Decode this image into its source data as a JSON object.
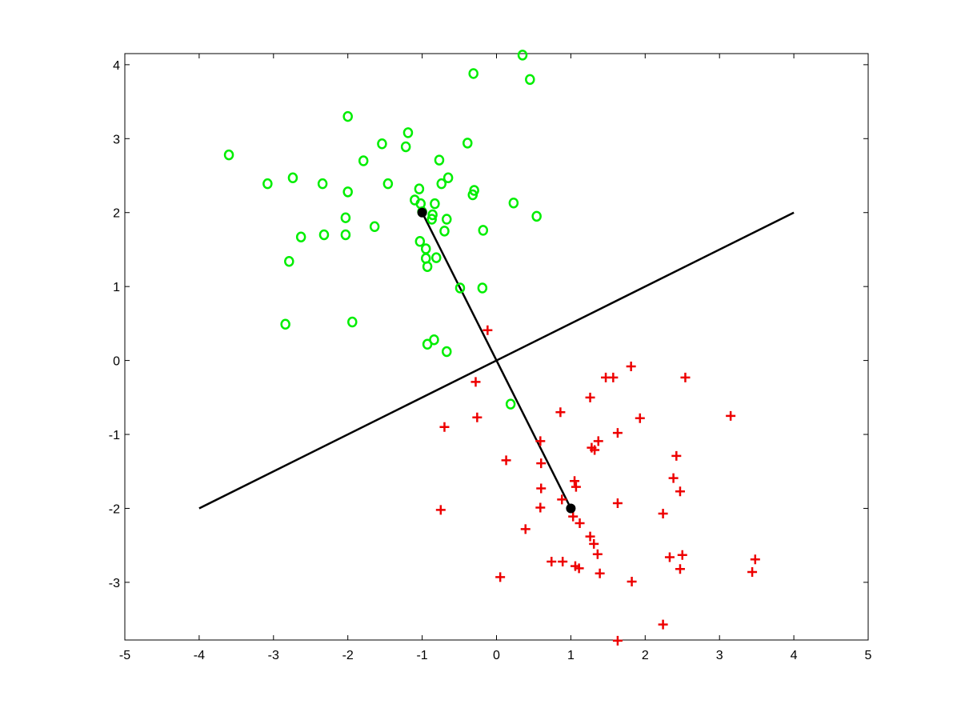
{
  "chart_data": {
    "type": "scatter",
    "title": "",
    "xlabel": "",
    "ylabel": "",
    "xlim": [
      -5,
      5
    ],
    "ylim": [
      -3.78,
      4.15
    ],
    "grid": false,
    "legend": "none",
    "x_ticks": [
      -5,
      -4,
      -3,
      -2,
      -1,
      0,
      1,
      2,
      3,
      4,
      5
    ],
    "y_ticks": [
      -3,
      -2,
      -1,
      0,
      1,
      2,
      3,
      4
    ],
    "series": [
      {
        "marker": "circle",
        "color": "#00ee00",
        "points": [
          [
            0.35,
            4.13
          ],
          [
            -0.31,
            3.88
          ],
          [
            0.45,
            3.8
          ],
          [
            -2.0,
            3.3
          ],
          [
            -1.19,
            3.08
          ],
          [
            -1.54,
            2.93
          ],
          [
            -0.39,
            2.94
          ],
          [
            -1.22,
            2.89
          ],
          [
            -3.6,
            2.78
          ],
          [
            -1.79,
            2.7
          ],
          [
            -0.77,
            2.71
          ],
          [
            -2.74,
            2.47
          ],
          [
            -3.08,
            2.39
          ],
          [
            -2.34,
            2.39
          ],
          [
            -1.46,
            2.39
          ],
          [
            -0.74,
            2.39
          ],
          [
            -0.65,
            2.47
          ],
          [
            -1.04,
            2.32
          ],
          [
            -2.0,
            2.28
          ],
          [
            -0.3,
            2.3
          ],
          [
            -0.32,
            2.24
          ],
          [
            -1.1,
            2.17
          ],
          [
            -1.02,
            2.12
          ],
          [
            -0.83,
            2.12
          ],
          [
            0.23,
            2.13
          ],
          [
            -1.0,
            2.01
          ],
          [
            -0.86,
            1.97
          ],
          [
            0.54,
            1.95
          ],
          [
            -2.03,
            1.93
          ],
          [
            -0.67,
            1.91
          ],
          [
            -0.87,
            1.91
          ],
          [
            -1.64,
            1.81
          ],
          [
            -0.7,
            1.75
          ],
          [
            -0.18,
            1.76
          ],
          [
            -2.63,
            1.67
          ],
          [
            -2.32,
            1.7
          ],
          [
            -2.03,
            1.7
          ],
          [
            -1.03,
            1.61
          ],
          [
            -0.95,
            1.51
          ],
          [
            -0.95,
            1.38
          ],
          [
            -0.81,
            1.39
          ],
          [
            -2.79,
            1.34
          ],
          [
            -0.93,
            1.27
          ],
          [
            -0.49,
            0.98
          ],
          [
            -0.19,
            0.98
          ],
          [
            -2.84,
            0.49
          ],
          [
            -1.94,
            0.52
          ],
          [
            -0.84,
            0.28
          ],
          [
            -0.93,
            0.22
          ],
          [
            -0.67,
            0.12
          ],
          [
            0.19,
            -0.59
          ]
        ]
      },
      {
        "marker": "plus",
        "color": "#ee0000",
        "points": [
          [
            -0.12,
            0.41
          ],
          [
            1.81,
            -0.08
          ],
          [
            1.47,
            -0.23
          ],
          [
            1.57,
            -0.23
          ],
          [
            2.54,
            -0.23
          ],
          [
            -0.28,
            -0.29
          ],
          [
            1.26,
            -0.5
          ],
          [
            0.86,
            -0.7
          ],
          [
            3.15,
            -0.75
          ],
          [
            -0.26,
            -0.77
          ],
          [
            1.93,
            -0.78
          ],
          [
            -0.7,
            -0.9
          ],
          [
            1.63,
            -0.98
          ],
          [
            0.59,
            -1.09
          ],
          [
            1.37,
            -1.09
          ],
          [
            1.28,
            -1.18
          ],
          [
            1.32,
            -1.21
          ],
          [
            2.42,
            -1.29
          ],
          [
            0.13,
            -1.35
          ],
          [
            0.6,
            -1.39
          ],
          [
            2.38,
            -1.59
          ],
          [
            1.05,
            -1.63
          ],
          [
            1.07,
            -1.71
          ],
          [
            0.6,
            -1.73
          ],
          [
            2.47,
            -1.77
          ],
          [
            0.88,
            -1.88
          ],
          [
            1.63,
            -1.93
          ],
          [
            0.59,
            -1.99
          ],
          [
            -0.75,
            -2.02
          ],
          [
            2.24,
            -2.07
          ],
          [
            1.03,
            -2.11
          ],
          [
            1.12,
            -2.2
          ],
          [
            0.39,
            -2.28
          ],
          [
            1.26,
            -2.38
          ],
          [
            1.31,
            -2.48
          ],
          [
            1.36,
            -2.62
          ],
          [
            2.5,
            -2.63
          ],
          [
            2.33,
            -2.66
          ],
          [
            3.48,
            -2.69
          ],
          [
            0.74,
            -2.72
          ],
          [
            0.89,
            -2.72
          ],
          [
            1.06,
            -2.78
          ],
          [
            1.11,
            -2.81
          ],
          [
            2.47,
            -2.82
          ],
          [
            3.44,
            -2.86
          ],
          [
            1.39,
            -2.88
          ],
          [
            0.05,
            -2.93
          ],
          [
            1.82,
            -2.99
          ],
          [
            2.24,
            -3.57
          ],
          [
            1.63,
            -3.79
          ]
        ]
      }
    ],
    "lines": [
      {
        "from": [
          -4,
          -2
        ],
        "to": [
          4,
          2
        ],
        "color": "#000000"
      },
      {
        "from": [
          -1,
          2
        ],
        "to": [
          1,
          -2
        ],
        "color": "#000000"
      }
    ],
    "highlight_points": {
      "marker": "filled-circle",
      "color": "#000000",
      "points": [
        [
          -1,
          2
        ],
        [
          1,
          -2
        ]
      ]
    }
  }
}
